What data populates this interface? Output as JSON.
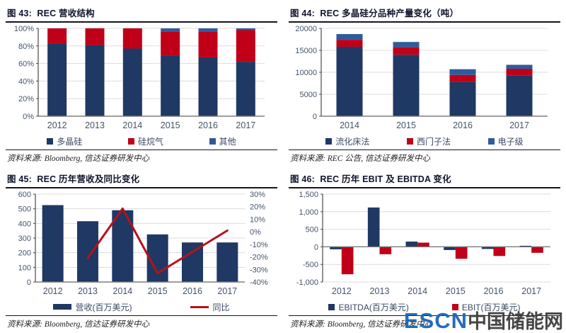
{
  "colors": {
    "navy": "#1f3864",
    "red": "#c00018",
    "blue": "#2f5b9d",
    "line_red": "#b5121b",
    "axis_text": "#44546a",
    "grid": "#dcdcdc",
    "zero_axis": "#7a7a7a",
    "y_axis": "#474747"
  },
  "panels": [
    {
      "header": "图 43:  REC 营收结构",
      "source": "资料来源: Bloomberg, 信达证券研发中心",
      "legend": [
        {
          "label": "多晶硅",
          "color_key": "navy",
          "swatch": "square"
        },
        {
          "label": "硅烷气",
          "color_key": "red",
          "swatch": "square"
        },
        {
          "label": "其他",
          "color_key": "blue",
          "swatch": "square"
        }
      ]
    },
    {
      "header": "图 44:  REC 多晶硅分品种产量变化（吨）",
      "source": "资料来源: REC 公告, 信达证券研发中心",
      "legend": [
        {
          "label": "流化床法",
          "color_key": "navy",
          "swatch": "square"
        },
        {
          "label": "西门子法",
          "color_key": "red",
          "swatch": "square"
        },
        {
          "label": "电子级",
          "color_key": "blue",
          "swatch": "square"
        }
      ]
    },
    {
      "header": "图 45:  REC 历年营收及同比变化",
      "source": "资料来源: Bloomberg, 信达证券研发中心",
      "legend": [
        {
          "label": "营收(百万美元)",
          "color_key": "navy",
          "swatch": "bar"
        },
        {
          "label": "同比",
          "color_key": "line_red",
          "swatch": "line"
        }
      ]
    },
    {
      "header": "图 46:  REC 历年 EBIT 及 EBITDA 变化",
      "source": "资料来源: Bloomberg, 信达证券研发中心",
      "legend": [
        {
          "label": "EBITDA(百万美元)",
          "color_key": "navy",
          "swatch": "square"
        },
        {
          "label": "EBIT(百万美元)",
          "color_key": "red",
          "swatch": "square"
        }
      ]
    }
  ],
  "chart_data": [
    {
      "type": "bar",
      "stacked": true,
      "percent": true,
      "title": "REC 营收结构",
      "categories": [
        "2012",
        "2013",
        "2014",
        "2015",
        "2016",
        "2017"
      ],
      "series": [
        {
          "name": "多晶硅",
          "color_key": "navy",
          "values": [
            83,
            81,
            77,
            69,
            67,
            62
          ]
        },
        {
          "name": "硅烷气",
          "color_key": "red",
          "values": [
            17,
            19,
            23,
            27,
            29,
            36
          ]
        },
        {
          "name": "其他",
          "color_key": "blue",
          "values": [
            0,
            0,
            0,
            4,
            4,
            2
          ]
        }
      ],
      "ylim": [
        0,
        100
      ],
      "ytick_step": 20,
      "yformat": "percent",
      "grid": true,
      "legend_position": "bottom"
    },
    {
      "type": "bar",
      "stacked": true,
      "title": "REC 多晶硅分品种产量变化（吨）",
      "categories": [
        "2014",
        "2015",
        "2016",
        "2017"
      ],
      "series": [
        {
          "name": "流化床法",
          "color_key": "navy",
          "values": [
            15800,
            14000,
            7800,
            9300
          ]
        },
        {
          "name": "西门子法",
          "color_key": "red",
          "values": [
            1600,
            1700,
            1600,
            1500
          ]
        },
        {
          "name": "电子级",
          "color_key": "blue",
          "values": [
            1300,
            1200,
            1300,
            900
          ]
        }
      ],
      "ylim": [
        0,
        20000
      ],
      "ytick_step": 5000,
      "yformat": "plain",
      "grid": true,
      "legend_position": "bottom"
    },
    {
      "type": "combo",
      "title": "REC 历年营收及同比变化",
      "categories": [
        "2012",
        "2013",
        "2014",
        "2015",
        "2016",
        "2017"
      ],
      "bar_series": {
        "name": "营收(百万美元)",
        "color_key": "navy",
        "values": [
          525,
          415,
          490,
          325,
          270,
          270
        ]
      },
      "line_series": {
        "name": "同比",
        "color_key": "line_red",
        "unit": "%",
        "values": [
          null,
          -21,
          18.5,
          -33,
          -16,
          1
        ]
      },
      "ylim_left": [
        0,
        600
      ],
      "ytick_step_left": 100,
      "ylim_right": [
        -40,
        30
      ],
      "ytick_step_right": 10,
      "yformat_right": "percent",
      "grid": true,
      "legend_position": "bottom"
    },
    {
      "type": "grouped_bar",
      "title": "REC 历年 EBIT 及 EBITDA 变化",
      "categories": [
        "2012",
        "2013",
        "2014",
        "2015",
        "2016",
        "2017"
      ],
      "series": [
        {
          "name": "EBITDA(百万美元)",
          "color_key": "navy",
          "values": [
            -70,
            1120,
            150,
            -90,
            -60,
            30
          ]
        },
        {
          "name": "EBIT(百万美元)",
          "color_key": "red",
          "values": [
            -780,
            -210,
            120,
            -340,
            -260,
            -170
          ]
        }
      ],
      "ylim": [
        -1000,
        1500
      ],
      "ytick_step": 500,
      "yformat": "comma",
      "grid": true,
      "legend_position": "bottom"
    }
  ],
  "watermark": {
    "escn": "ESCN",
    "cn": "中国储能网"
  }
}
